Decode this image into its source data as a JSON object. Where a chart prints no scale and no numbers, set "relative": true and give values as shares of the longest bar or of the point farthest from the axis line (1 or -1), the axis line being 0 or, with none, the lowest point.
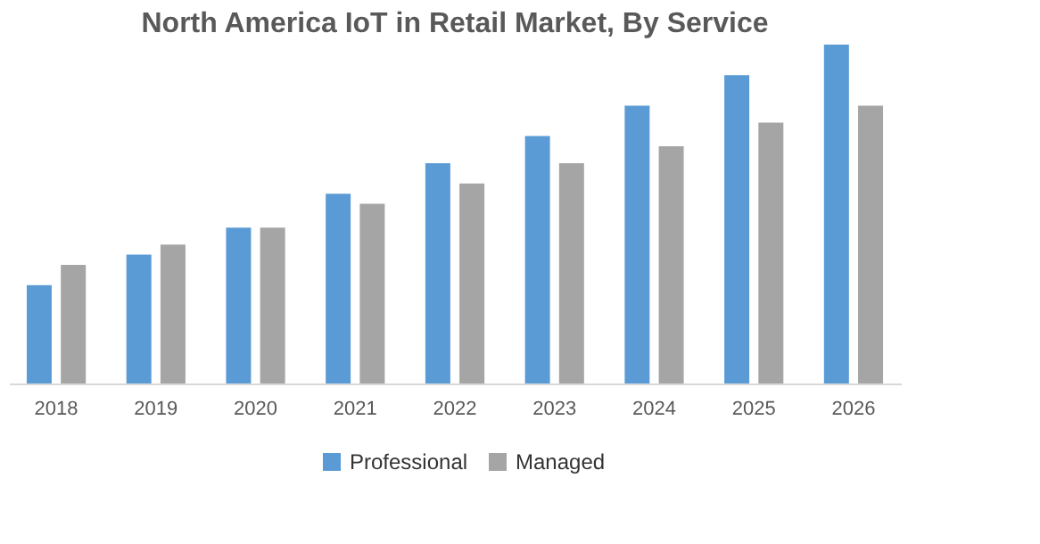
{
  "chart_data": {
    "type": "bar",
    "title": "North America IoT in Retail Market, By Service",
    "relative": true,
    "legend": "bottom",
    "categories": [
      "2018",
      "2019",
      "2020",
      "2021",
      "2022",
      "2023",
      "2024",
      "2025",
      "2026"
    ],
    "series": [
      {
        "name": "Professional",
        "color": "#5b9bd5",
        "values": [
          0.29,
          0.38,
          0.46,
          0.56,
          0.65,
          0.73,
          0.82,
          0.91,
          1
        ]
      },
      {
        "name": "Managed",
        "color": "#a5a5a5",
        "values": [
          0.35,
          0.41,
          0.46,
          0.53,
          0.59,
          0.65,
          0.7,
          0.77,
          0.82
        ]
      }
    ]
  }
}
